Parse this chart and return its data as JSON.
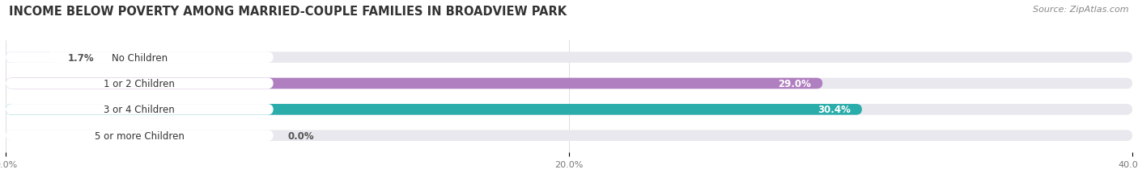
{
  "title": "INCOME BELOW POVERTY AMONG MARRIED-COUPLE FAMILIES IN BROADVIEW PARK",
  "source": "Source: ZipAtlas.com",
  "categories": [
    "No Children",
    "1 or 2 Children",
    "3 or 4 Children",
    "5 or more Children"
  ],
  "values": [
    1.7,
    29.0,
    30.4,
    0.0
  ],
  "bar_colors": [
    "#a8c4e0",
    "#b07fbf",
    "#2aacaa",
    "#c0bce8"
  ],
  "value_label_colors": [
    "#555555",
    "#ffffff",
    "#ffffff",
    "#555555"
  ],
  "xlim": [
    0,
    40
  ],
  "xticks": [
    0.0,
    20.0,
    40.0
  ],
  "xtick_labels": [
    "0.0%",
    "20.0%",
    "40.0%"
  ],
  "title_fontsize": 10.5,
  "source_fontsize": 8,
  "label_fontsize": 8.5,
  "value_fontsize": 8.5,
  "background_color": "#ffffff",
  "plot_bg_color": "#ffffff",
  "bar_bg_color": "#e8e8ee",
  "bar_height": 0.42,
  "bar_spacing": 1.0
}
